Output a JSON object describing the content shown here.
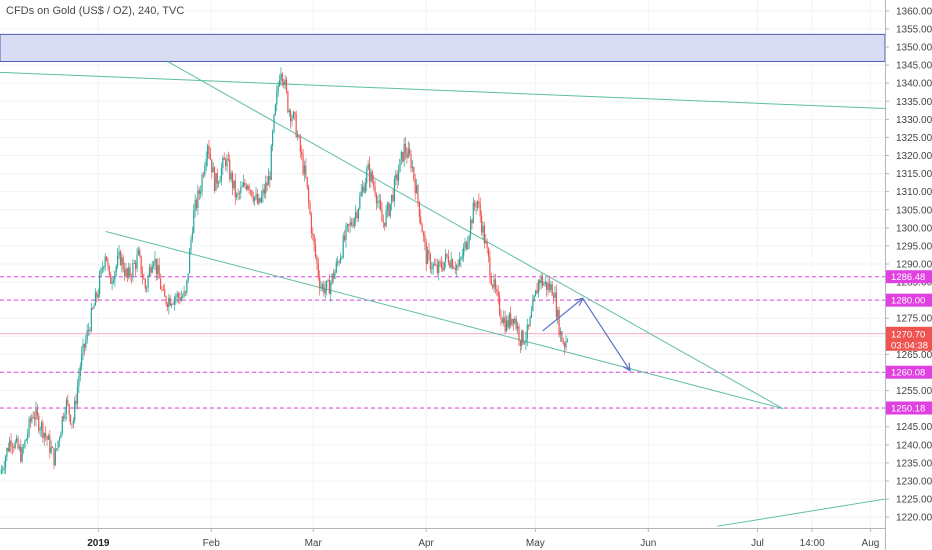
{
  "chart_data": {
    "type": "candlestick",
    "title": "CFDs on Gold (US$ / OZ), 240, TVC",
    "ylim": [
      1217,
      1363
    ],
    "y_ticks": [
      1220,
      1225,
      1230,
      1235,
      1240,
      1245,
      1250,
      1255,
      1260,
      1265,
      1270,
      1275,
      1280,
      1285,
      1290,
      1295,
      1300,
      1305,
      1310,
      1315,
      1320,
      1325,
      1330,
      1335,
      1340,
      1345,
      1350,
      1355,
      1360
    ],
    "y_tick_labels": [
      "1220.00",
      "1225.00",
      "1230.00",
      "1235.00",
      "1240.00",
      "1245.00",
      "1250.00",
      "1255.00",
      "1260.00",
      "1265.00",
      "1270.00",
      "1275.00",
      "1280.00",
      "1285.00",
      "1290.00",
      "1295.00",
      "1300.00",
      "1305.00",
      "1310.00",
      "1315.00",
      "1320.00",
      "1325.00",
      "1330.00",
      "1335.00",
      "1340.00",
      "1345.00",
      "1350.00",
      "1355.00",
      "1360.00"
    ],
    "x_ticks": [
      {
        "label": "2019",
        "bold": true,
        "day": 0
      },
      {
        "label": "Feb",
        "bold": false,
        "day": 31
      },
      {
        "label": "Mar",
        "bold": false,
        "day": 59
      },
      {
        "label": "Apr",
        "bold": false,
        "day": 90
      },
      {
        "label": "May",
        "bold": false,
        "day": 120
      },
      {
        "label": "Jun",
        "bold": false,
        "day": 151
      },
      {
        "label": "Jul",
        "bold": false,
        "day": 181
      },
      {
        "label": "14:00",
        "bold": false,
        "day": 196
      },
      {
        "label": "Aug",
        "bold": false,
        "day": 212
      }
    ],
    "x_range_days": [
      -27,
      216
    ],
    "level_lines": [
      {
        "value": 1286.48,
        "label": "1286.48"
      },
      {
        "value": 1280.0,
        "label": "1280.00"
      },
      {
        "value": 1260.08,
        "label": "1260.08"
      },
      {
        "value": 1250.18,
        "label": "1250.18"
      }
    ],
    "current_price": {
      "value": 1270.7,
      "label": "1270.70",
      "countdown": "03:04:38"
    },
    "resistance_zone": [
      1346,
      1353.5
    ],
    "trendlines": [
      {
        "from": {
          "day": -27,
          "price": 1343
        },
        "to": {
          "day": 216,
          "price": 1333
        }
      },
      {
        "from": {
          "day": 19,
          "price": 1346
        },
        "to": {
          "day": 188,
          "price": 1250
        }
      },
      {
        "from": {
          "day": 2,
          "price": 1299
        },
        "to": {
          "day": 188,
          "price": 1250
        }
      },
      {
        "from": {
          "day": 170,
          "price": 1217.5
        },
        "to": {
          "day": 216,
          "price": 1225
        }
      }
    ],
    "projection": [
      {
        "day": 122,
        "price": 1271.5
      },
      {
        "day": 133,
        "price": 1280.5
      },
      {
        "day": 146,
        "price": 1260.5
      }
    ],
    "price_path": [
      {
        "day": -27,
        "price": 1232
      },
      {
        "day": -24,
        "price": 1242
      },
      {
        "day": -21,
        "price": 1237
      },
      {
        "day": -18,
        "price": 1249
      },
      {
        "day": -15,
        "price": 1244
      },
      {
        "day": -12,
        "price": 1236
      },
      {
        "day": -9,
        "price": 1252
      },
      {
        "day": -7,
        "price": 1246
      },
      {
        "day": -5,
        "price": 1262
      },
      {
        "day": -2,
        "price": 1275
      },
      {
        "day": 0,
        "price": 1283
      },
      {
        "day": 2,
        "price": 1294
      },
      {
        "day": 3,
        "price": 1285
      },
      {
        "day": 6,
        "price": 1292
      },
      {
        "day": 8,
        "price": 1286
      },
      {
        "day": 11,
        "price": 1292
      },
      {
        "day": 13,
        "price": 1283
      },
      {
        "day": 15,
        "price": 1293
      },
      {
        "day": 18,
        "price": 1280
      },
      {
        "day": 21,
        "price": 1281
      },
      {
        "day": 24,
        "price": 1281
      },
      {
        "day": 26,
        "price": 1303
      },
      {
        "day": 28,
        "price": 1311
      },
      {
        "day": 30,
        "price": 1324
      },
      {
        "day": 32,
        "price": 1312
      },
      {
        "day": 35,
        "price": 1319
      },
      {
        "day": 38,
        "price": 1308
      },
      {
        "day": 41,
        "price": 1313
      },
      {
        "day": 44,
        "price": 1306
      },
      {
        "day": 47,
        "price": 1314
      },
      {
        "day": 48,
        "price": 1327
      },
      {
        "day": 49,
        "price": 1336
      },
      {
        "day": 50,
        "price": 1345
      },
      {
        "day": 51,
        "price": 1341
      },
      {
        "day": 52,
        "price": 1334
      },
      {
        "day": 54,
        "price": 1329
      },
      {
        "day": 56,
        "price": 1318
      },
      {
        "day": 57,
        "price": 1313
      },
      {
        "day": 59,
        "price": 1296
      },
      {
        "day": 61,
        "price": 1284
      },
      {
        "day": 63,
        "price": 1283
      },
      {
        "day": 65,
        "price": 1288
      },
      {
        "day": 68,
        "price": 1298
      },
      {
        "day": 71,
        "price": 1305
      },
      {
        "day": 74,
        "price": 1316
      },
      {
        "day": 76,
        "price": 1311
      },
      {
        "day": 78,
        "price": 1301
      },
      {
        "day": 80,
        "price": 1306
      },
      {
        "day": 82,
        "price": 1314
      },
      {
        "day": 84,
        "price": 1322
      },
      {
        "day": 86,
        "price": 1318
      },
      {
        "day": 88,
        "price": 1306
      },
      {
        "day": 90,
        "price": 1292
      },
      {
        "day": 93,
        "price": 1288
      },
      {
        "day": 96,
        "price": 1292
      },
      {
        "day": 99,
        "price": 1289
      },
      {
        "day": 101,
        "price": 1296
      },
      {
        "day": 103,
        "price": 1305
      },
      {
        "day": 104,
        "price": 1308
      },
      {
        "day": 106,
        "price": 1297
      },
      {
        "day": 108,
        "price": 1286
      },
      {
        "day": 110,
        "price": 1278
      },
      {
        "day": 112,
        "price": 1273
      },
      {
        "day": 114,
        "price": 1276
      },
      {
        "day": 116,
        "price": 1269
      },
      {
        "day": 118,
        "price": 1271
      },
      {
        "day": 119,
        "price": 1276
      },
      {
        "day": 121,
        "price": 1286
      },
      {
        "day": 123,
        "price": 1284
      },
      {
        "day": 125,
        "price": 1283
      },
      {
        "day": 126,
        "price": 1276
      },
      {
        "day": 127,
        "price": 1270
      },
      {
        "day": 128,
        "price": 1268
      },
      {
        "day": 129,
        "price": 1270.7
      }
    ]
  }
}
